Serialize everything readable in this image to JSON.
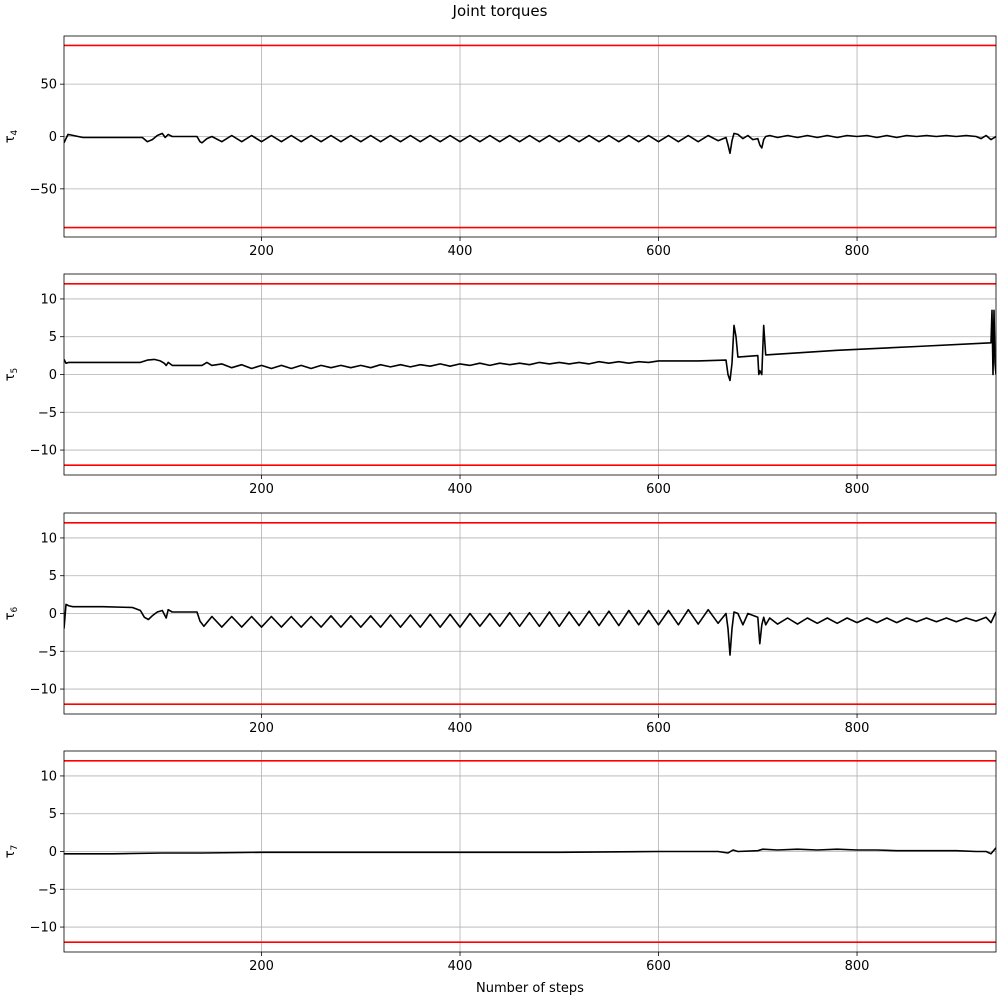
{
  "figure": {
    "title": "Joint torques",
    "xlabel": "Number of steps"
  },
  "chart_data": [
    {
      "type": "line",
      "ylabel": "τ4",
      "ylabel_base": "τ",
      "ylabel_sub": "4",
      "xlim": [
        1,
        940
      ],
      "ylim": [
        -96,
        96
      ],
      "xticks": [
        200,
        400,
        600,
        800
      ],
      "yticks": [
        -50,
        0,
        50
      ],
      "grid": true,
      "limit_lines": [
        87,
        -87
      ],
      "limit_color": "#ff0000",
      "line_color": "#000000",
      "series": [
        {
          "x": [
            1,
            5,
            20,
            40,
            60,
            80,
            85,
            90,
            95,
            100,
            103,
            106,
            110,
            120,
            135,
            138,
            140,
            145,
            150,
            160,
            170,
            180,
            190,
            200,
            210,
            220,
            230,
            240,
            250,
            260,
            270,
            280,
            290,
            300,
            310,
            320,
            330,
            340,
            350,
            360,
            370,
            380,
            390,
            400,
            410,
            420,
            430,
            440,
            450,
            460,
            470,
            480,
            490,
            500,
            510,
            520,
            530,
            540,
            550,
            560,
            570,
            580,
            590,
            600,
            610,
            620,
            630,
            640,
            650,
            660,
            668,
            670,
            672,
            674,
            676,
            680,
            685,
            690,
            695,
            700,
            702,
            704,
            706,
            708,
            712,
            720,
            730,
            740,
            750,
            760,
            770,
            780,
            790,
            800,
            810,
            820,
            830,
            840,
            850,
            860,
            870,
            880,
            890,
            900,
            910,
            920,
            925,
            930,
            935,
            940
          ],
          "y": [
            -6,
            2,
            -1,
            -1,
            -1,
            -1,
            -5,
            -3,
            1,
            3,
            -1,
            2,
            0,
            0,
            0,
            -5,
            -6,
            -2,
            0,
            -5,
            1,
            -5,
            1,
            -5,
            1,
            -5,
            1,
            -5,
            1,
            -5,
            1,
            -5,
            1,
            -5,
            1,
            -5,
            1,
            -5,
            1,
            -5,
            1,
            -5,
            1,
            -5,
            1,
            -5,
            1,
            -5,
            1,
            -5,
            1,
            -5,
            1,
            -5,
            1,
            -5,
            1,
            -5,
            1,
            -5,
            1,
            -5,
            1,
            -5,
            1,
            -5,
            1,
            -5,
            1,
            -4,
            -1,
            -8,
            -16,
            -4,
            3,
            2,
            -2,
            1,
            -3,
            -2,
            -8,
            -11,
            -3,
            0,
            1,
            -1,
            1,
            -1,
            1,
            -1,
            1,
            -1,
            1,
            0,
            1,
            -1,
            1,
            -1,
            1,
            0,
            1,
            0,
            1,
            0,
            1,
            0,
            -2,
            1,
            -3,
            0
          ]
        }
      ]
    },
    {
      "type": "line",
      "ylabel": "τ5",
      "ylabel_base": "τ",
      "ylabel_sub": "5",
      "xlim": [
        1,
        940
      ],
      "ylim": [
        -13.3,
        13.3
      ],
      "xticks": [
        200,
        400,
        600,
        800
      ],
      "yticks": [
        -10,
        -5,
        0,
        5,
        10
      ],
      "grid": true,
      "limit_lines": [
        12,
        -12
      ],
      "limit_color": "#ff0000",
      "line_color": "#000000",
      "series": [
        {
          "x": [
            1,
            3,
            6,
            30,
            60,
            78,
            85,
            92,
            98,
            102,
            104,
            106,
            110,
            135,
            140,
            145,
            150,
            160,
            170,
            180,
            190,
            200,
            210,
            220,
            230,
            240,
            250,
            260,
            270,
            280,
            290,
            300,
            310,
            320,
            330,
            340,
            350,
            360,
            370,
            380,
            390,
            400,
            410,
            420,
            430,
            440,
            450,
            460,
            470,
            480,
            490,
            500,
            510,
            520,
            530,
            540,
            550,
            560,
            570,
            580,
            590,
            600,
            620,
            640,
            668,
            670,
            672,
            674,
            676,
            678,
            680,
            700,
            701,
            702,
            704,
            706,
            708,
            780,
            860,
            935,
            936,
            937,
            938,
            939,
            940
          ],
          "y": [
            2.0,
            1.5,
            1.6,
            1.6,
            1.6,
            1.6,
            1.9,
            2.0,
            1.8,
            1.5,
            1.2,
            1.6,
            1.2,
            1.2,
            1.2,
            1.6,
            1.2,
            1.4,
            0.9,
            1.3,
            0.8,
            1.2,
            0.8,
            1.2,
            0.8,
            1.2,
            0.8,
            1.2,
            0.9,
            1.2,
            0.9,
            1.2,
            0.9,
            1.3,
            1.0,
            1.3,
            1.0,
            1.3,
            1.1,
            1.4,
            1.1,
            1.4,
            1.2,
            1.5,
            1.2,
            1.5,
            1.3,
            1.5,
            1.3,
            1.6,
            1.4,
            1.6,
            1.4,
            1.6,
            1.4,
            1.7,
            1.5,
            1.7,
            1.5,
            1.7,
            1.6,
            1.8,
            1.8,
            1.8,
            1.9,
            0.0,
            -0.8,
            1.5,
            6.5,
            5.0,
            2.3,
            2.5,
            0.0,
            0.5,
            0.0,
            6.5,
            2.6,
            3.2,
            3.7,
            4.2,
            8.5,
            0.0,
            8.5,
            1.5,
            0.0
          ]
        }
      ]
    },
    {
      "type": "line",
      "ylabel": "τ6",
      "ylabel_base": "τ",
      "ylabel_sub": "6",
      "xlim": [
        1,
        940
      ],
      "ylim": [
        -13.3,
        13.3
      ],
      "xticks": [
        200,
        400,
        600,
        800
      ],
      "yticks": [
        -10,
        -5,
        0,
        5,
        10
      ],
      "grid": true,
      "limit_lines": [
        12,
        -12
      ],
      "limit_color": "#ff0000",
      "line_color": "#000000",
      "series": [
        {
          "x": [
            1,
            3,
            6,
            10,
            40,
            70,
            78,
            82,
            86,
            90,
            95,
            100,
            104,
            106,
            110,
            135,
            138,
            142,
            150,
            160,
            170,
            180,
            190,
            200,
            210,
            220,
            230,
            240,
            250,
            260,
            270,
            280,
            290,
            300,
            310,
            320,
            330,
            340,
            350,
            360,
            370,
            380,
            390,
            400,
            410,
            420,
            430,
            440,
            450,
            460,
            470,
            480,
            490,
            500,
            510,
            520,
            530,
            540,
            550,
            560,
            570,
            580,
            590,
            600,
            610,
            620,
            630,
            640,
            650,
            660,
            668,
            670,
            672,
            674,
            676,
            680,
            685,
            690,
            700,
            702,
            704,
            706,
            708,
            712,
            720,
            730,
            740,
            750,
            760,
            770,
            780,
            790,
            800,
            810,
            820,
            830,
            840,
            850,
            860,
            870,
            880,
            890,
            900,
            910,
            920,
            930,
            935,
            940
          ],
          "y": [
            -2.0,
            1.2,
            1.0,
            0.9,
            0.9,
            0.8,
            0.4,
            -0.5,
            -0.8,
            -0.3,
            0.2,
            0.4,
            -0.6,
            0.5,
            0.2,
            0.2,
            -1.0,
            -1.7,
            -0.4,
            -1.8,
            -0.4,
            -1.8,
            -0.4,
            -1.8,
            -0.4,
            -1.8,
            -0.4,
            -1.8,
            -0.4,
            -1.8,
            -0.3,
            -1.8,
            -0.3,
            -1.8,
            -0.3,
            -1.8,
            -0.2,
            -1.8,
            -0.2,
            -1.8,
            -0.1,
            -1.8,
            -0.1,
            -1.8,
            0.0,
            -1.7,
            0.0,
            -1.7,
            0.1,
            -1.7,
            0.1,
            -1.7,
            0.2,
            -1.7,
            0.2,
            -1.6,
            0.3,
            -1.6,
            0.3,
            -1.6,
            0.4,
            -1.5,
            0.4,
            -1.5,
            0.4,
            -1.5,
            0.5,
            -1.4,
            0.5,
            -1.3,
            0.0,
            -2.0,
            -5.5,
            -2.0,
            0.2,
            0.0,
            -1.5,
            0.0,
            -0.5,
            -4.0,
            -1.5,
            -0.5,
            -1.5,
            -0.6,
            -1.4,
            -0.6,
            -1.4,
            -0.6,
            -1.3,
            -0.6,
            -1.3,
            -0.6,
            -1.2,
            -0.6,
            -1.2,
            -0.6,
            -1.2,
            -0.6,
            -1.1,
            -0.6,
            -1.1,
            -0.6,
            -1.1,
            -0.6,
            -1.0,
            -0.5,
            -1.2,
            0.2
          ]
        }
      ]
    },
    {
      "type": "line",
      "ylabel": "τ7",
      "ylabel_base": "τ",
      "ylabel_sub": "7",
      "xlim": [
        1,
        940
      ],
      "ylim": [
        -13.3,
        13.3
      ],
      "xticks": [
        200,
        400,
        600,
        800
      ],
      "yticks": [
        -10,
        -5,
        0,
        5,
        10
      ],
      "grid": true,
      "limit_lines": [
        12,
        -12
      ],
      "limit_color": "#ff0000",
      "line_color": "#000000",
      "series": [
        {
          "x": [
            1,
            50,
            100,
            140,
            200,
            300,
            400,
            500,
            600,
            660,
            670,
            675,
            680,
            700,
            705,
            720,
            740,
            760,
            780,
            800,
            820,
            840,
            860,
            880,
            900,
            920,
            930,
            935,
            940
          ],
          "y": [
            -0.3,
            -0.3,
            -0.2,
            -0.2,
            -0.1,
            -0.1,
            -0.1,
            -0.1,
            0.0,
            0.0,
            -0.2,
            0.2,
            0.0,
            0.1,
            0.3,
            0.2,
            0.3,
            0.2,
            0.3,
            0.2,
            0.2,
            0.1,
            0.1,
            0.1,
            0.1,
            0.0,
            0.0,
            -0.3,
            0.5
          ]
        }
      ]
    }
  ]
}
